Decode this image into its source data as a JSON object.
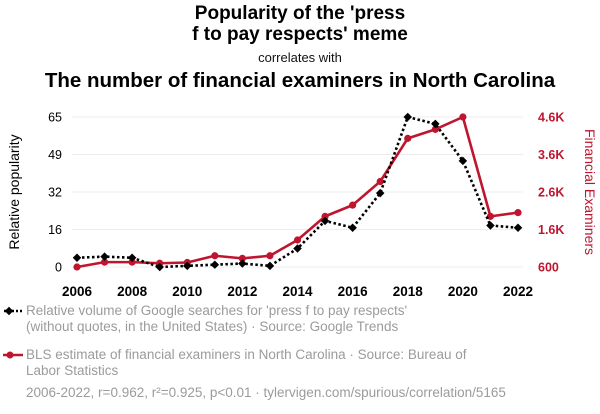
{
  "header": {
    "title_line1": "Popularity of the 'press",
    "title_line2": "f to pay respects' meme",
    "correlates": "correlates with",
    "subtitle": "The number of financial examiners in North Carolina"
  },
  "colors": {
    "series1": "#000000",
    "series2": "#c0152f",
    "muted": "#9b9b9b"
  },
  "chart_data": {
    "type": "line",
    "x": [
      2006,
      2007,
      2008,
      2009,
      2010,
      2011,
      2012,
      2013,
      2014,
      2015,
      2016,
      2017,
      2018,
      2019,
      2020,
      2021,
      2022
    ],
    "xticks": [
      "2006",
      "2008",
      "2010",
      "2012",
      "2014",
      "2016",
      "2018",
      "2020",
      "2022"
    ],
    "left_axis": {
      "label": "Relative popularity",
      "ticks": [
        "0",
        "16",
        "32",
        "49",
        "65"
      ],
      "range": [
        0,
        65
      ]
    },
    "right_axis": {
      "label": "Financial Examiners",
      "ticks": [
        "600",
        "1.6K",
        "2.6K",
        "3.6K",
        "4.6K"
      ],
      "range": [
        600,
        4600
      ]
    },
    "series": [
      {
        "name": "Relative volume of Google searches for 'press f to pay respects' (without quotes, in the United States) · Source: Google Trends",
        "axis": "left",
        "style": "dotted",
        "values": [
          4,
          4.5,
          4,
          0,
          0.5,
          1,
          1.5,
          0.5,
          8,
          20,
          17,
          32,
          65,
          62,
          46,
          18,
          17
        ]
      },
      {
        "name": "BLS estimate of financial examiners in North Carolina · Source: Bureau of Labor Statistics",
        "axis": "right",
        "style": "solid",
        "values": [
          600,
          730,
          730,
          700,
          720,
          900,
          830,
          900,
          1320,
          1950,
          2250,
          2880,
          4030,
          4270,
          4600,
          1950,
          2050
        ]
      }
    ]
  },
  "legend": {
    "item1_line1": "Relative volume of Google searches for 'press f to pay respects'",
    "item1_line2": "(without quotes, in the United States) · Source: Google Trends",
    "item2_line1": "BLS estimate of financial examiners in North Carolina · Source: Bureau of",
    "item2_line2": "Labor Statistics"
  },
  "footer": {
    "text": "2006-2022, r=0.962, r²=0.925, p<0.01 · tylervigen.com/spurious/correlation/5165"
  }
}
